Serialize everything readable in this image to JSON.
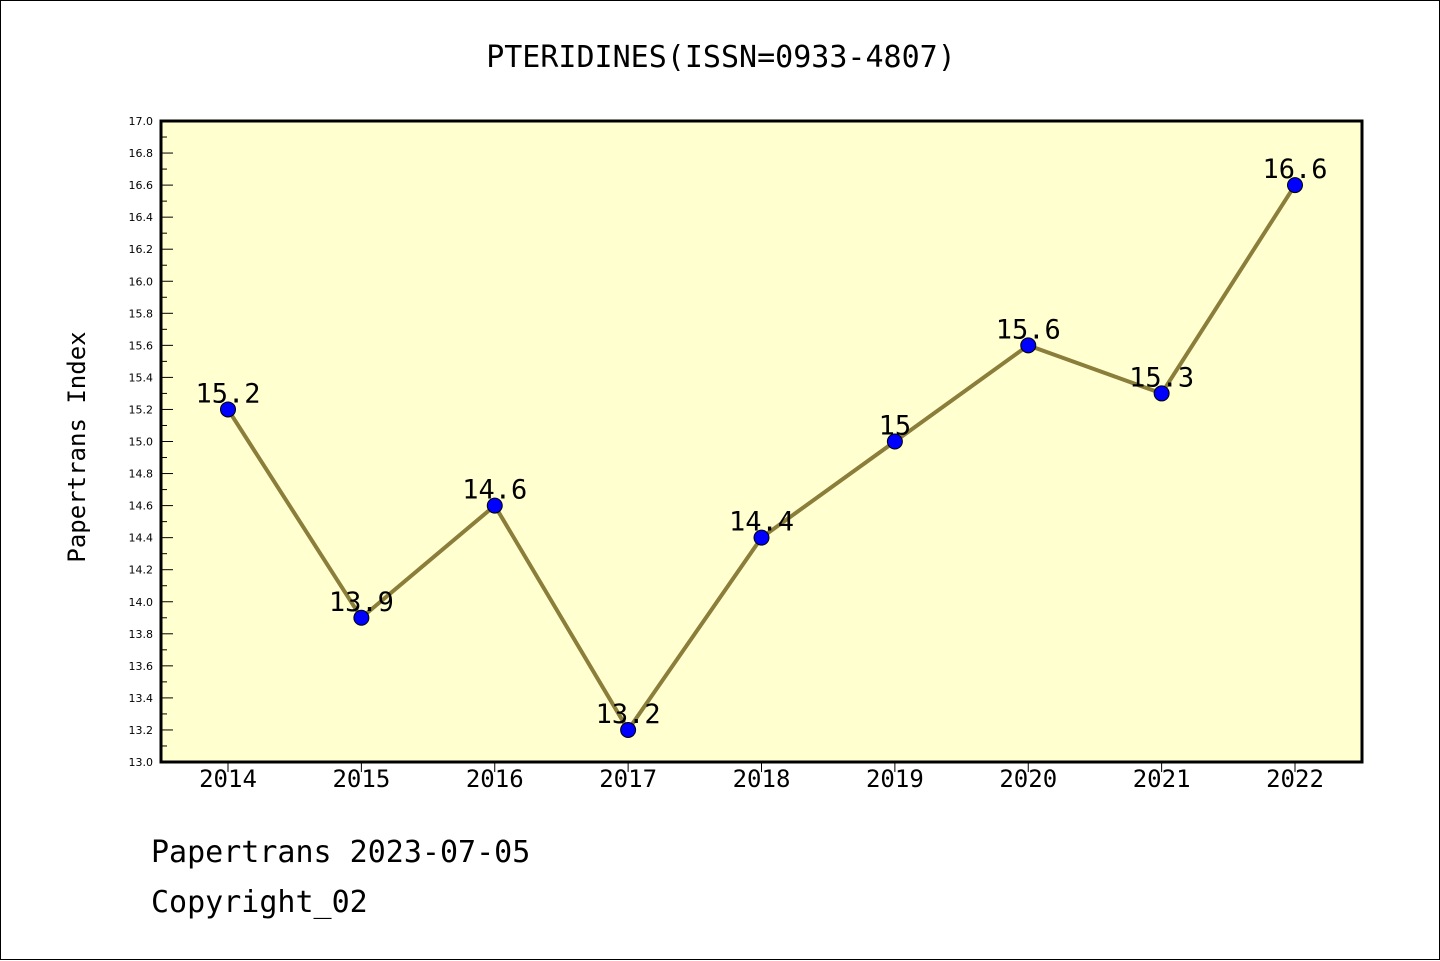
{
  "chart_data": {
    "type": "line",
    "title": "PTERIDINES(ISSN=0933-4807)",
    "xlabel": "",
    "ylabel": "Papertrans Index",
    "categories": [
      "2014",
      "2015",
      "2016",
      "2017",
      "2018",
      "2019",
      "2020",
      "2021",
      "2022"
    ],
    "series": [
      {
        "values": [
          15.2,
          13.9,
          14.6,
          13.2,
          14.4,
          15.0,
          15.6,
          15.3,
          16.6
        ],
        "point_labels": [
          "15.2",
          "13.9",
          "14.6",
          "13.2",
          "14.4",
          "15",
          "15.6",
          "15.3",
          "16.6"
        ],
        "line_color": "#8b7d3a",
        "marker_color": "#0000ff"
      }
    ],
    "ylim": [
      13.0,
      17.0
    ],
    "yticks": [
      "13.0",
      "13.2",
      "13.4",
      "13.6",
      "13.8",
      "14.0",
      "14.2",
      "14.4",
      "14.6",
      "14.8",
      "15.0",
      "15.2",
      "15.4",
      "15.6",
      "15.8",
      "16.0",
      "16.2",
      "16.4",
      "16.6",
      "16.8",
      "17.0"
    ],
    "plot_background": "#ffffd0",
    "grid": false,
    "legend": "none"
  },
  "footer": {
    "source": "Papertrans 2023-07-05",
    "copyright": "Copyright_02"
  }
}
